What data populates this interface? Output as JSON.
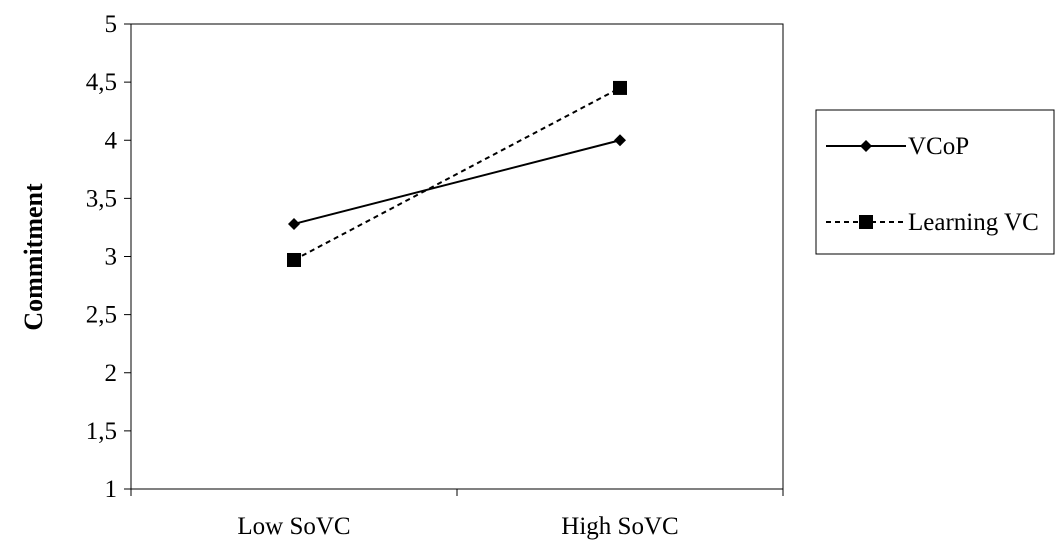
{
  "chart_data": {
    "type": "line",
    "title": "",
    "xlabel": "",
    "ylabel": "Commitment",
    "categories": [
      "Low SoVC",
      "High SoVC"
    ],
    "ylim": [
      1,
      5
    ],
    "yticks": [
      "1",
      "1,5",
      "2",
      "2,5",
      "3",
      "3,5",
      "4",
      "4,5",
      "5"
    ],
    "ytick_values": [
      1,
      1.5,
      2,
      2.5,
      3,
      3.5,
      4,
      4.5,
      5
    ],
    "grid": false,
    "legend_position": "right",
    "series": [
      {
        "name": "VCoP",
        "values": [
          3.28,
          4.0
        ],
        "marker": "diamond",
        "line_style": "solid",
        "color": "#000000"
      },
      {
        "name": "Learning VC",
        "values": [
          2.97,
          4.45
        ],
        "marker": "square",
        "line_style": "dashed",
        "color": "#000000"
      }
    ]
  }
}
